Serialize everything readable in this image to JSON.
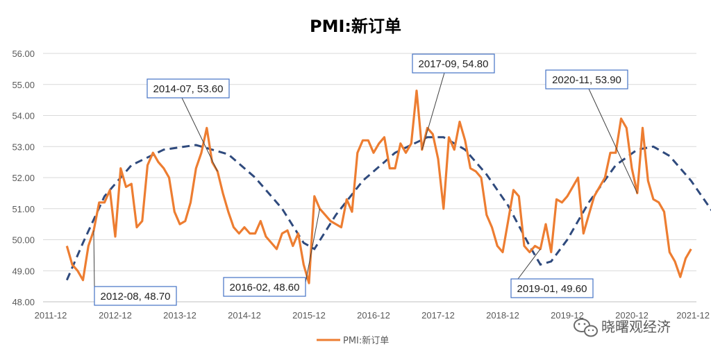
{
  "chart_data": {
    "type": "line",
    "title": "PMI:新订单",
    "ylim": [
      48.0,
      56.0
    ],
    "ytick_labels": [
      "48.00",
      "49.00",
      "50.00",
      "51.00",
      "52.00",
      "53.00",
      "54.00",
      "55.00",
      "56.00"
    ],
    "xtick_labels": [
      "2011-12",
      "2012-12",
      "2013-12",
      "2014-12",
      "2015-12",
      "2016-12",
      "2017-12",
      "2018-12",
      "2019-12",
      "2020-12",
      "2021-12"
    ],
    "x_start": "2012-03",
    "grid": true,
    "legend_position": "bottom",
    "series": [
      {
        "name": "PMI:新订单",
        "color": "#ED7D31",
        "values": [
          49.8,
          49.2,
          49.0,
          48.7,
          49.8,
          50.3,
          51.2,
          51.2,
          51.6,
          50.1,
          52.3,
          51.7,
          51.8,
          50.4,
          50.6,
          52.4,
          52.8,
          52.5,
          52.3,
          52.0,
          50.9,
          50.5,
          50.6,
          51.2,
          52.3,
          52.8,
          53.6,
          52.5,
          52.2,
          51.5,
          50.9,
          50.4,
          50.2,
          50.4,
          50.2,
          50.2,
          50.6,
          50.1,
          49.9,
          49.7,
          50.2,
          50.3,
          49.8,
          50.2,
          49.2,
          48.6,
          51.4,
          51.0,
          50.8,
          50.6,
          50.5,
          50.4,
          51.3,
          50.9,
          52.8,
          53.2,
          53.2,
          52.8,
          53.1,
          53.3,
          52.3,
          52.3,
          53.1,
          52.8,
          53.1,
          54.8,
          52.9,
          53.6,
          53.4,
          52.6,
          51.0,
          53.3,
          52.9,
          53.8,
          53.2,
          52.3,
          52.2,
          52.0,
          50.8,
          50.4,
          49.8,
          49.6,
          50.6,
          51.6,
          51.4,
          49.8,
          49.6,
          49.8,
          49.7,
          50.5,
          49.6,
          51.3,
          51.2,
          51.4,
          51.7,
          52.0,
          50.2,
          50.8,
          51.4,
          51.7,
          52.0,
          52.8,
          52.8,
          53.9,
          53.6,
          52.3,
          51.5,
          53.6,
          51.9,
          51.3,
          51.2,
          50.9,
          49.6,
          49.3,
          48.8,
          49.4,
          49.7
        ]
      }
    ],
    "trend_color": "#2F4A7D",
    "annotations": [
      {
        "label": "2012-08, 48.70"
      },
      {
        "label": "2014-07, 53.60"
      },
      {
        "label": "2016-02, 48.60"
      },
      {
        "label": "2017-09, 54.80"
      },
      {
        "label": "2019-01, 49.60"
      },
      {
        "label": "2020-11, 53.90"
      }
    ]
  },
  "watermark": {
    "text": "晓曙观经济",
    "icon": "wechat-icon"
  }
}
